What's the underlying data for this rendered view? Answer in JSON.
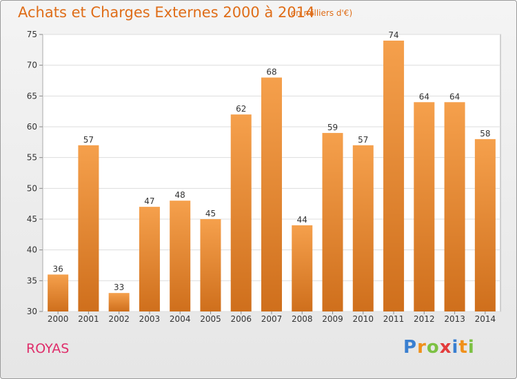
{
  "chart_data": {
    "type": "bar",
    "title": "Achats et Charges Externes 2000 à 2014",
    "subtitle": "(en milliers d'€)",
    "categories": [
      "2000",
      "2001",
      "2002",
      "2003",
      "2004",
      "2005",
      "2006",
      "2007",
      "2008",
      "2009",
      "2010",
      "2011",
      "2012",
      "2013",
      "2014"
    ],
    "values": [
      36,
      57,
      33,
      47,
      48,
      45,
      62,
      68,
      44,
      59,
      57,
      74,
      64,
      64,
      58
    ],
    "ylim": [
      30,
      75
    ],
    "yticks": [
      30,
      35,
      40,
      45,
      50,
      55,
      60,
      65,
      70,
      75
    ],
    "grid": true,
    "bar_color": "#f5a04c",
    "bar_color_dark": "#cf6f1c",
    "data_labels": true
  },
  "commune": "ROYAS",
  "logo": {
    "text": "Proxiti",
    "letters": [
      {
        "char": "P",
        "color": "#3a7fd0"
      },
      {
        "char": "r",
        "color": "#f0901a"
      },
      {
        "char": "o",
        "color": "#7cc143"
      },
      {
        "char": "x",
        "color": "#e33c3c"
      },
      {
        "char": "i",
        "color": "#3a7fd0"
      },
      {
        "char": "t",
        "color": "#f0901a"
      },
      {
        "char": "i",
        "color": "#7cc143"
      }
    ]
  }
}
